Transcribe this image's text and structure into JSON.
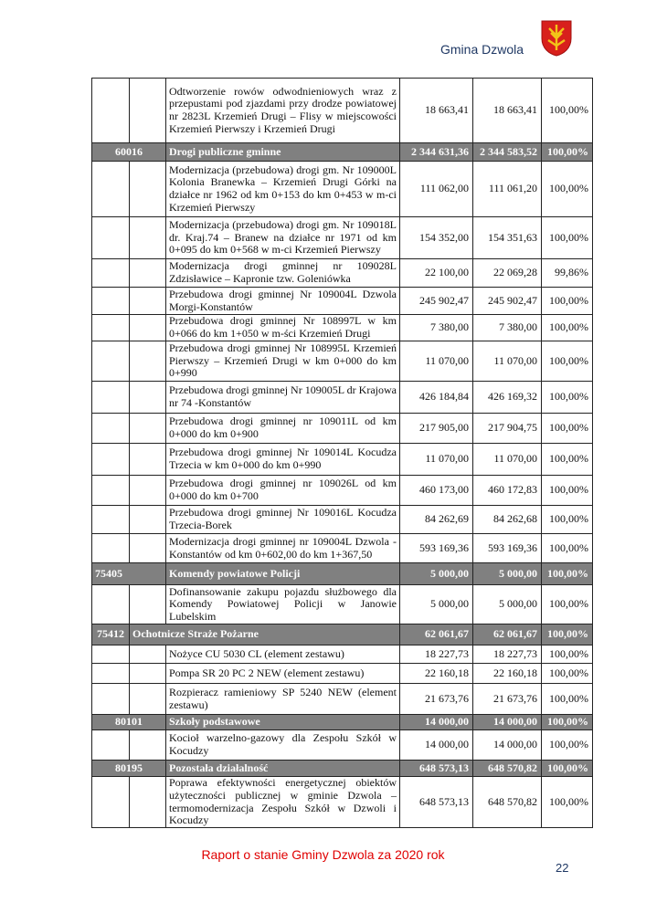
{
  "header": {
    "title": "Gmina Dzwola",
    "logo": "coat-of-arms"
  },
  "rows": [
    {
      "type": "item",
      "desc": "Odtworzenie rowów odwodnieniowych wraz z przepustami pod zjazdami przy drodze powiatowej nr 2823L Krzemień Drugi – Flisy w miejscowości Krzemień Pierwszy i Krzemień Drugi",
      "plan": "18 663,41",
      "exec": "18 663,41",
      "pct": "100,00%"
    },
    {
      "type": "sec",
      "style": "center",
      "code": "60016",
      "name": "Drogi publiczne gminne",
      "plan": "2 344 631,36",
      "exec": "2 344 583,52",
      "pct": "100,00%"
    },
    {
      "type": "item",
      "desc": "Modernizacja (przebudowa) drogi gm. Nr 109000L Kolonia Branewka – Krzemień Drugi Górki na działce nr 1962 od km 0+153 do km 0+453 w m-ci Krzemień Pierwszy",
      "plan": "111 062,00",
      "exec": "111 061,20",
      "pct": "100,00%"
    },
    {
      "type": "item",
      "desc": "Modernizacja (przebudowa) drogi gm. Nr 109018L dr. Kraj.74 – Branew na działce nr 1971 od km 0+095 do km 0+568 w m-ci Krzemień Pierwszy",
      "plan": "154 352,00",
      "exec": "154 351,63",
      "pct": "100,00%"
    },
    {
      "type": "item",
      "desc": "Modernizacja drogi gminnej nr 109028L Zdzisławice – Kapronie tzw. Goleniówka",
      "plan": "22 100,00",
      "exec": "22 069,28",
      "pct": "99,86%"
    },
    {
      "type": "item",
      "desc": "Przebudowa drogi gminnej Nr 109004L Dzwola Morgi-Konstantów",
      "plan": "245 902,47",
      "exec": "245 902,47",
      "pct": "100,00%"
    },
    {
      "type": "item",
      "desc": "Przebudowa drogi gminnej Nr 108997L w km 0+066 do km 1+050 w m-ści Krzemień Drugi",
      "plan": "7 380,00",
      "exec": "7 380,00",
      "pct": "100,00%"
    },
    {
      "type": "item",
      "desc": "Przebudowa drogi gminnej Nr 108995L Krzemień Pierwszy – Krzemień Drugi w km 0+000 do km 0+990",
      "plan": "11 070,00",
      "exec": "11 070,00",
      "pct": "100,00%"
    },
    {
      "type": "item",
      "desc": "Przebudowa drogi gminnej Nr 109005L dr Krajowa nr 74 -Konstantów",
      "plan": "426 184,84",
      "exec": "426 169,32",
      "pct": "100,00%"
    },
    {
      "type": "item",
      "desc": "Przebudowa drogi gminnej nr 109011L od km 0+000 do km 0+900",
      "plan": "217 905,00",
      "exec": "217 904,75",
      "pct": "100,00%"
    },
    {
      "type": "item",
      "desc": "Przebudowa drogi gminnej Nr 109014L Kocudza Trzecia w km 0+000 do km 0+990",
      "plan": "11 070,00",
      "exec": "11 070,00",
      "pct": "100,00%"
    },
    {
      "type": "item",
      "desc": "Przebudowa drogi gminnej nr 109026L od km 0+000 do km 0+700",
      "plan": "460 173,00",
      "exec": "460 172,83",
      "pct": "100,00%"
    },
    {
      "type": "item",
      "desc": "Przebudowa drogi gminnej Nr 109016L Kocudza Trzecia-Borek",
      "plan": "84 262,69",
      "exec": "84 262,68",
      "pct": "100,00%"
    },
    {
      "type": "item",
      "desc": "Modernizacja drogi gminnej nr 109004L Dzwola -Konstantów od km 0+602,00 do km 1+367,50",
      "plan": "593 169,36",
      "exec": "593 169,36",
      "pct": "100,00%"
    },
    {
      "type": "sec",
      "style": "left",
      "code": "75405",
      "name": "Komendy powiatowe Policji",
      "plan": "5 000,00",
      "exec": "5 000,00",
      "pct": "100,00%"
    },
    {
      "type": "item",
      "desc": "Dofinansowanie zakupu pojazdu służbowego dla Komendy Powiatowej Policji w Janowie Lubelskim",
      "plan": "5 000,00",
      "exec": "5 000,00",
      "pct": "100,00%"
    },
    {
      "type": "sec",
      "style": "wide",
      "code": "75412",
      "name": "Ochotnicze Straże Pożarne",
      "plan": "62 061,67",
      "exec": "62 061,67",
      "pct": "100,00%"
    },
    {
      "type": "item",
      "desc": "Nożyce CU 5030 CL (element zestawu)",
      "plan": "18 227,73",
      "exec": "18 227,73",
      "pct": "100,00%"
    },
    {
      "type": "item",
      "desc": "Pompa SR 20 PC 2 NEW (element zestawu)",
      "plan": "22 160,18",
      "exec": "22 160,18",
      "pct": "100,00%"
    },
    {
      "type": "item",
      "desc": "Rozpieracz ramieniowy SP 5240 NEW (element zestawu)",
      "plan": "21 673,76",
      "exec": "21 673,76",
      "pct": "100,00%"
    },
    {
      "type": "sec",
      "style": "center",
      "code": "80101",
      "name": "Szkoły podstawowe",
      "plan": "14 000,00",
      "exec": "14 000,00",
      "pct": "100,00%"
    },
    {
      "type": "item",
      "desc": "Kocioł warzelno-gazowy dla Zespołu Szkół w Kocudzy",
      "plan": "14 000,00",
      "exec": "14 000,00",
      "pct": "100,00%"
    },
    {
      "type": "sec",
      "style": "center",
      "code": "80195",
      "name": "Pozostała działalność",
      "plan": "648 573,13",
      "exec": "648 570,82",
      "pct": "100,00%"
    },
    {
      "type": "item",
      "desc": "Poprawa efektywności energetycznej obiektów użyteczności publicznej w gminie Dzwola – termomodernizacja Zespołu Szkół w Dzwoli i Kocudzy",
      "plan": "648 573,13",
      "exec": "648 570,82",
      "pct": "100,00%"
    }
  ],
  "footer": {
    "title": "Raport o stanie Gminy Dzwola za 2020 rok",
    "page": "22"
  }
}
